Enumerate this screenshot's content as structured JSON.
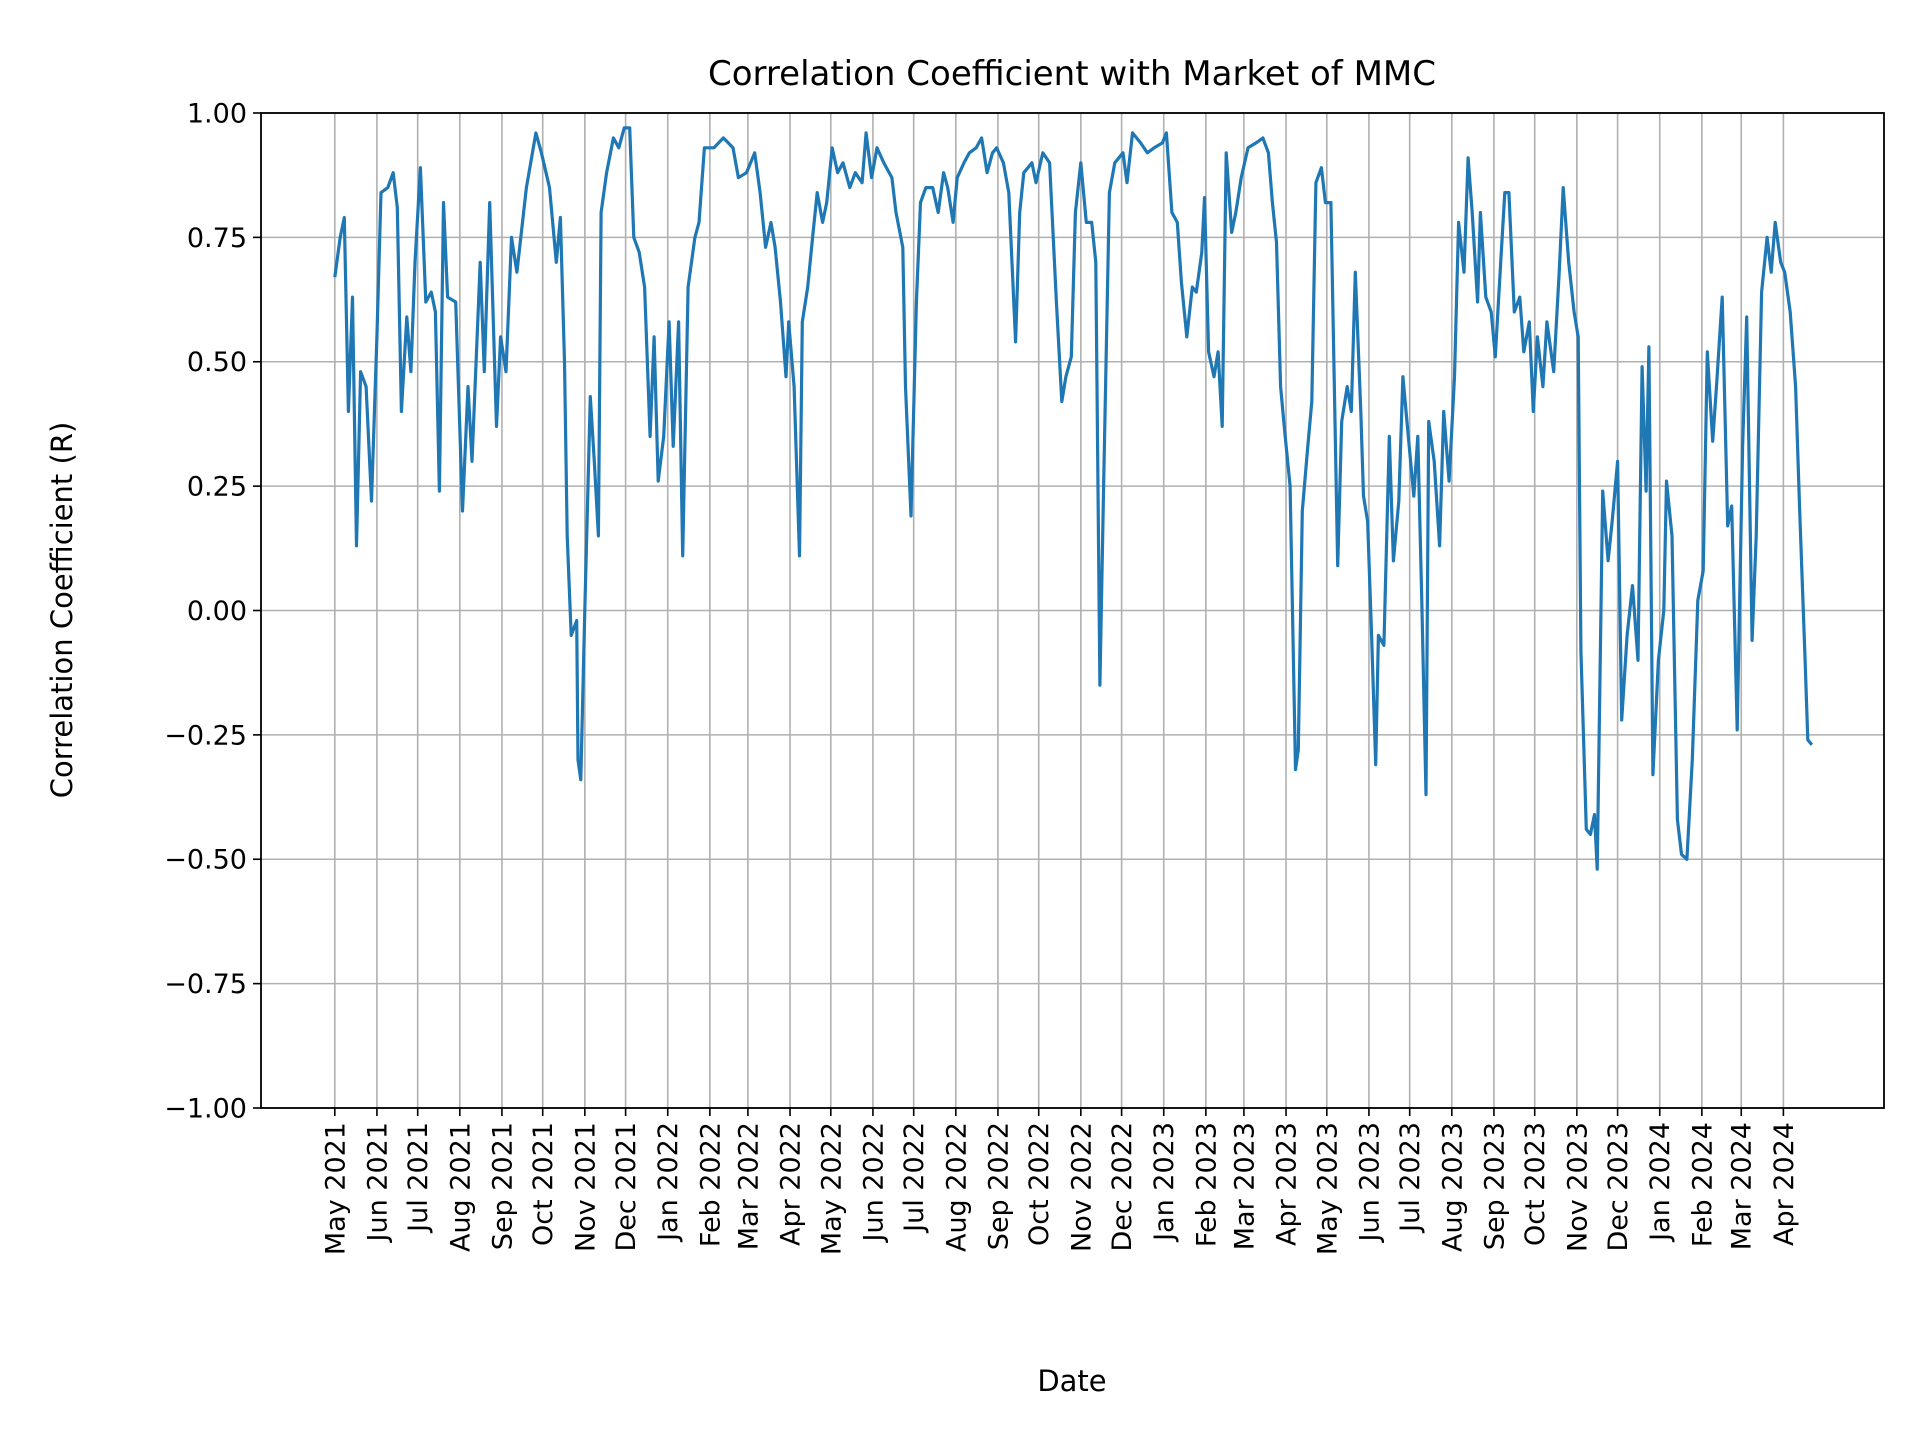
{
  "chart_data": {
    "type": "line",
    "title": "Correlation Coefficient with Market of MMC",
    "xlabel": "Date",
    "ylabel": "Correlation Coefficient (R)",
    "ylim": [
      -1.0,
      1.0
    ],
    "yticks": [
      "−1.00",
      "−0.75",
      "−0.50",
      "−0.25",
      "0.00",
      "0.25",
      "0.50",
      "0.75",
      "1.00"
    ],
    "ytick_values": [
      -1.0,
      -0.75,
      -0.5,
      -0.25,
      0.0,
      0.25,
      0.5,
      0.75,
      1.0
    ],
    "xticks": [
      "May 2021",
      "Jun 2021",
      "Jul 2021",
      "Aug 2021",
      "Sep 2021",
      "Oct 2021",
      "Nov 2021",
      "Dec 2021",
      "Jan 2022",
      "Feb 2022",
      "Mar 2022",
      "Apr 2022",
      "May 2022",
      "Jun 2022",
      "Jul 2022",
      "Aug 2022",
      "Sep 2022",
      "Oct 2022",
      "Nov 2022",
      "Dec 2022",
      "Jan 2023",
      "Feb 2023",
      "Mar 2023",
      "Apr 2023",
      "May 2023",
      "Jun 2023",
      "Jul 2023",
      "Aug 2023",
      "Sep 2023",
      "Oct 2023",
      "Nov 2023",
      "Dec 2023",
      "Jan 2024",
      "Feb 2024",
      "Mar 2024",
      "Apr 2024"
    ],
    "xtick_dates": [
      "2021-05-01",
      "2021-06-01",
      "2021-07-01",
      "2021-08-01",
      "2021-09-01",
      "2021-10-01",
      "2021-11-01",
      "2021-12-01",
      "2022-01-01",
      "2022-02-01",
      "2022-03-01",
      "2022-04-01",
      "2022-05-01",
      "2022-06-01",
      "2022-07-01",
      "2022-08-01",
      "2022-09-01",
      "2022-10-01",
      "2022-11-01",
      "2022-12-01",
      "2023-01-01",
      "2023-02-01",
      "2023-03-01",
      "2023-04-01",
      "2023-05-01",
      "2023-06-01",
      "2023-07-01",
      "2023-08-01",
      "2023-09-01",
      "2023-10-01",
      "2023-11-01",
      "2023-12-01",
      "2024-01-01",
      "2024-02-01",
      "2024-03-01",
      "2024-04-01"
    ],
    "grid": true,
    "series": [
      {
        "color": "#1f77b4",
        "x": [
          "2021-05-01",
          "2021-05-05",
          "2021-05-08",
          "2021-05-11",
          "2021-05-14",
          "2021-05-17",
          "2021-05-20",
          "2021-05-24",
          "2021-05-28",
          "2021-06-01",
          "2021-06-04",
          "2021-06-09",
          "2021-06-13",
          "2021-06-16",
          "2021-06-19",
          "2021-06-23",
          "2021-06-26",
          "2021-06-29",
          "2021-07-03",
          "2021-07-07",
          "2021-07-11",
          "2021-07-14",
          "2021-07-17",
          "2021-07-20",
          "2021-07-23",
          "2021-07-29",
          "2021-08-03",
          "2021-08-07",
          "2021-08-10",
          "2021-08-16",
          "2021-08-19",
          "2021-08-23",
          "2021-08-28",
          "2021-08-31",
          "2021-09-04",
          "2021-09-08",
          "2021-09-12",
          "2021-09-19",
          "2021-09-26",
          "2021-09-30",
          "2021-10-06",
          "2021-10-11",
          "2021-10-14",
          "2021-10-17",
          "2021-10-19",
          "2021-10-22",
          "2021-10-26",
          "2021-10-27",
          "2021-10-29",
          "2021-11-01",
          "2021-11-05",
          "2021-11-08",
          "2021-11-11",
          "2021-11-13",
          "2021-11-17",
          "2021-11-22",
          "2021-11-26",
          "2021-11-30",
          "2021-12-04",
          "2021-12-07",
          "2021-12-11",
          "2021-12-15",
          "2021-12-19",
          "2021-12-22",
          "2021-12-25",
          "2021-12-29",
          "2022-01-02",
          "2022-01-05",
          "2022-01-09",
          "2022-01-12",
          "2022-01-16",
          "2022-01-21",
          "2022-01-24",
          "2022-01-28",
          "2022-02-04",
          "2022-02-11",
          "2022-02-18",
          "2022-02-22",
          "2022-02-28",
          "2022-03-06",
          "2022-03-10",
          "2022-03-14",
          "2022-03-18",
          "2022-03-21",
          "2022-03-25",
          "2022-03-29",
          "2022-03-31",
          "2022-04-04",
          "2022-04-08",
          "2022-04-10",
          "2022-04-14",
          "2022-04-18",
          "2022-04-21",
          "2022-04-25",
          "2022-04-28",
          "2022-05-02",
          "2022-05-06",
          "2022-05-10",
          "2022-05-15",
          "2022-05-19",
          "2022-05-24",
          "2022-05-27",
          "2022-05-31",
          "2022-06-04",
          "2022-06-09",
          "2022-06-15",
          "2022-06-18",
          "2022-06-23",
          "2022-06-25",
          "2022-06-29",
          "2022-07-03",
          "2022-07-06",
          "2022-07-10",
          "2022-07-15",
          "2022-07-19",
          "2022-07-23",
          "2022-07-26",
          "2022-07-30",
          "2022-08-02",
          "2022-08-07",
          "2022-08-11",
          "2022-08-16",
          "2022-08-20",
          "2022-08-24",
          "2022-08-28",
          "2022-08-31",
          "2022-09-05",
          "2022-09-09",
          "2022-09-14",
          "2022-09-17",
          "2022-09-20",
          "2022-09-26",
          "2022-09-29",
          "2022-10-04",
          "2022-10-09",
          "2022-10-14",
          "2022-10-18",
          "2022-10-21",
          "2022-10-25",
          "2022-10-28",
          "2022-11-01",
          "2022-11-05",
          "2022-11-09",
          "2022-11-12",
          "2022-11-15",
          "2022-11-18",
          "2022-11-22",
          "2022-11-26",
          "2022-12-02",
          "2022-12-05",
          "2022-12-09",
          "2022-12-15",
          "2022-12-20",
          "2022-12-25",
          "2022-12-31",
          "2023-01-03",
          "2023-01-07",
          "2023-01-11",
          "2023-01-14",
          "2023-01-18",
          "2023-01-22",
          "2023-01-25",
          "2023-01-29",
          "2023-01-31",
          "2023-02-03",
          "2023-02-07",
          "2023-02-10",
          "2023-02-13",
          "2023-02-16",
          "2023-02-20",
          "2023-02-23",
          "2023-02-27",
          "2023-03-04",
          "2023-03-10",
          "2023-03-15",
          "2023-03-19",
          "2023-03-22",
          "2023-03-25",
          "2023-03-28",
          "2023-03-31",
          "2023-04-04",
          "2023-04-08",
          "2023-04-10",
          "2023-04-13",
          "2023-04-17",
          "2023-04-20",
          "2023-04-23",
          "2023-04-27",
          "2023-04-30",
          "2023-05-04",
          "2023-05-07",
          "2023-05-09",
          "2023-05-12",
          "2023-05-16",
          "2023-05-19",
          "2023-05-22",
          "2023-05-26",
          "2023-05-28",
          "2023-05-31",
          "2023-06-03",
          "2023-06-06",
          "2023-06-08",
          "2023-06-12",
          "2023-06-16",
          "2023-06-19",
          "2023-06-23",
          "2023-06-26",
          "2023-06-30",
          "2023-07-04",
          "2023-07-07",
          "2023-07-10",
          "2023-07-13",
          "2023-07-15",
          "2023-07-19",
          "2023-07-23",
          "2023-07-26",
          "2023-07-30",
          "2023-08-03",
          "2023-08-06",
          "2023-08-10",
          "2023-08-13",
          "2023-08-16",
          "2023-08-20",
          "2023-08-22",
          "2023-08-26",
          "2023-08-30",
          "2023-09-02",
          "2023-09-06",
          "2023-09-09",
          "2023-09-12",
          "2023-09-16",
          "2023-09-20",
          "2023-09-23",
          "2023-09-27",
          "2023-09-30",
          "2023-10-03",
          "2023-10-07",
          "2023-10-10",
          "2023-10-15",
          "2023-10-19",
          "2023-10-22",
          "2023-10-26",
          "2023-10-30",
          "2023-11-02",
          "2023-11-04",
          "2023-11-08",
          "2023-11-11",
          "2023-11-14",
          "2023-11-16",
          "2023-11-20",
          "2023-11-24",
          "2023-11-27",
          "2023-12-01",
          "2023-12-04",
          "2023-12-08",
          "2023-12-12",
          "2023-12-16",
          "2023-12-19",
          "2023-12-22",
          "2023-12-24",
          "2023-12-27",
          "2023-12-31",
          "2024-01-04",
          "2024-01-06",
          "2024-01-10",
          "2024-01-14",
          "2024-01-17",
          "2024-01-21",
          "2024-01-25",
          "2024-01-29",
          "2024-02-02",
          "2024-02-05",
          "2024-02-09",
          "2024-02-12",
          "2024-02-16",
          "2024-02-20",
          "2024-02-23",
          "2024-02-27",
          "2024-03-02",
          "2024-03-05",
          "2024-03-09",
          "2024-03-12",
          "2024-03-16",
          "2024-03-20",
          "2024-03-23",
          "2024-03-26",
          "2024-03-30",
          "2024-04-02",
          "2024-04-06",
          "2024-04-10",
          "2024-04-13",
          "2024-04-17",
          "2024-04-19",
          "2024-04-22"
        ],
        "y": [
          0.67,
          0.75,
          0.79,
          0.4,
          0.63,
          0.13,
          0.48,
          0.45,
          0.22,
          0.55,
          0.84,
          0.85,
          0.88,
          0.81,
          0.4,
          0.59,
          0.48,
          0.7,
          0.89,
          0.62,
          0.64,
          0.6,
          0.24,
          0.82,
          0.63,
          0.62,
          0.2,
          0.45,
          0.3,
          0.7,
          0.48,
          0.82,
          0.37,
          0.55,
          0.48,
          0.75,
          0.68,
          0.85,
          0.96,
          0.92,
          0.85,
          0.7,
          0.79,
          0.5,
          0.15,
          -0.05,
          -0.02,
          -0.3,
          -0.34,
          0.0,
          0.43,
          0.3,
          0.15,
          0.8,
          0.88,
          0.95,
          0.93,
          0.97,
          0.97,
          0.75,
          0.72,
          0.65,
          0.35,
          0.55,
          0.26,
          0.35,
          0.58,
          0.33,
          0.58,
          0.11,
          0.65,
          0.75,
          0.78,
          0.93,
          0.93,
          0.95,
          0.93,
          0.87,
          0.88,
          0.92,
          0.84,
          0.73,
          0.78,
          0.73,
          0.62,
          0.47,
          0.58,
          0.45,
          0.11,
          0.58,
          0.65,
          0.76,
          0.84,
          0.78,
          0.82,
          0.93,
          0.88,
          0.9,
          0.85,
          0.88,
          0.86,
          0.96,
          0.87,
          0.93,
          0.9,
          0.87,
          0.8,
          0.73,
          0.45,
          0.19,
          0.62,
          0.82,
          0.85,
          0.85,
          0.8,
          0.88,
          0.85,
          0.78,
          0.87,
          0.9,
          0.92,
          0.93,
          0.95,
          0.88,
          0.92,
          0.93,
          0.9,
          0.84,
          0.54,
          0.8,
          0.88,
          0.9,
          0.86,
          0.92,
          0.9,
          0.62,
          0.42,
          0.47,
          0.51,
          0.8,
          0.9,
          0.78,
          0.78,
          0.7,
          -0.15,
          0.28,
          0.84,
          0.9,
          0.92,
          0.86,
          0.96,
          0.94,
          0.92,
          0.93,
          0.94,
          0.96,
          0.8,
          0.78,
          0.66,
          0.55,
          0.65,
          0.64,
          0.72,
          0.83,
          0.52,
          0.47,
          0.52,
          0.37,
          0.92,
          0.76,
          0.8,
          0.87,
          0.93,
          0.94,
          0.95,
          0.92,
          0.82,
          0.74,
          0.45,
          0.36,
          0.25,
          -0.32,
          -0.28,
          0.2,
          0.33,
          0.42,
          0.86,
          0.89,
          0.82,
          0.82,
          0.38,
          0.09,
          0.38,
          0.45,
          0.4,
          0.68,
          0.4,
          0.23,
          0.18,
          -0.05,
          -0.31,
          -0.05,
          -0.07,
          0.35,
          0.1,
          0.22,
          0.47,
          0.35,
          0.23,
          0.35,
          0.01,
          -0.37,
          0.38,
          0.3,
          0.13,
          0.4,
          0.26,
          0.47,
          0.78,
          0.68,
          0.91,
          0.8,
          0.62,
          0.8,
          0.63,
          0.6,
          0.51,
          0.7,
          0.84,
          0.84,
          0.6,
          0.63,
          0.52,
          0.58,
          0.4,
          0.55,
          0.45,
          0.58,
          0.48,
          0.68,
          0.85,
          0.7,
          0.6,
          0.55,
          -0.08,
          -0.44,
          -0.45,
          -0.41,
          -0.52,
          0.24,
          0.1,
          0.18,
          0.3,
          -0.22,
          -0.05,
          0.05,
          -0.1,
          0.49,
          0.24,
          0.53,
          -0.33,
          -0.1,
          0.0,
          0.26,
          0.15,
          -0.42,
          -0.49,
          -0.5,
          -0.3,
          0.02,
          0.08,
          0.52,
          0.34,
          0.46,
          0.63,
          0.17,
          0.21,
          -0.24,
          0.33,
          0.59,
          -0.06,
          0.15,
          0.64,
          0.75,
          0.68,
          0.78,
          0.7,
          0.68,
          0.6,
          0.45,
          0.2,
          -0.1,
          -0.26,
          -0.27
        ]
      }
    ]
  }
}
